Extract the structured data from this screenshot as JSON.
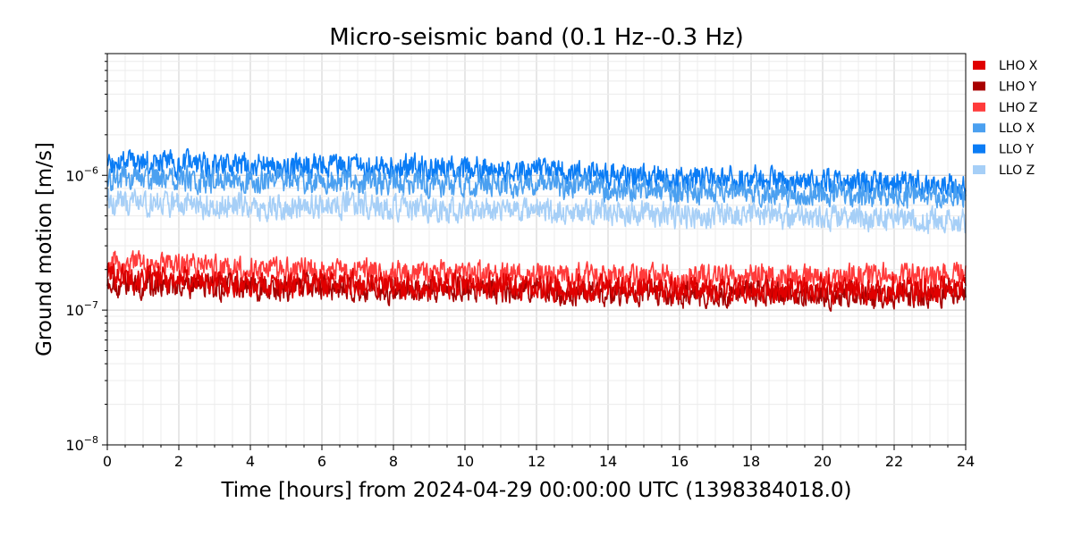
{
  "chart_data": {
    "type": "line",
    "title": "Micro-seismic band (0.1 Hz--0.3 Hz)",
    "xlabel": "Time [hours] from 2024-04-29 00:00:00 UTC (1398384018.0)",
    "ylabel": "Ground motion [m/s]",
    "xlim": [
      0,
      24
    ],
    "ylim": [
      1e-08,
      8e-06
    ],
    "y_scale": "log",
    "grid": true,
    "legend_position": "outside-right-top",
    "x_ticks": [
      {
        "value": 0,
        "label": "0"
      },
      {
        "value": 2,
        "label": "2"
      },
      {
        "value": 4,
        "label": "4"
      },
      {
        "value": 6,
        "label": "6"
      },
      {
        "value": 8,
        "label": "8"
      },
      {
        "value": 10,
        "label": "10"
      },
      {
        "value": 12,
        "label": "12"
      },
      {
        "value": 14,
        "label": "14"
      },
      {
        "value": 16,
        "label": "16"
      },
      {
        "value": 18,
        "label": "18"
      },
      {
        "value": 20,
        "label": "20"
      },
      {
        "value": 22,
        "label": "22"
      },
      {
        "value": 24,
        "label": "24"
      }
    ],
    "y_ticks": [
      {
        "value": 1e-08,
        "base": "10",
        "exp": "−8"
      },
      {
        "value": 1e-07,
        "base": "10",
        "exp": "−7"
      },
      {
        "value": 1e-06,
        "base": "10",
        "exp": "−6"
      }
    ],
    "x": [
      0,
      1,
      2,
      3,
      4,
      5,
      6,
      7,
      8,
      9,
      10,
      11,
      12,
      13,
      14,
      15,
      16,
      17,
      18,
      19,
      20,
      21,
      22,
      23,
      24
    ],
    "series": [
      {
        "name": "LHO X",
        "color": "#e00000",
        "values": [
          1.9e-07,
          1.7e-07,
          1.7e-07,
          1.6e-07,
          1.55e-07,
          1.55e-07,
          1.6e-07,
          1.6e-07,
          1.5e-07,
          1.5e-07,
          1.55e-07,
          1.5e-07,
          1.45e-07,
          1.45e-07,
          1.45e-07,
          1.45e-07,
          1.4e-07,
          1.4e-07,
          1.45e-07,
          1.4e-07,
          1.45e-07,
          1.4e-07,
          1.45e-07,
          1.4e-07,
          1.5e-07
        ]
      },
      {
        "name": "LHO Y",
        "color": "#a80000",
        "values": [
          1.6e-07,
          1.5e-07,
          1.55e-07,
          1.5e-07,
          1.45e-07,
          1.45e-07,
          1.5e-07,
          1.45e-07,
          1.4e-07,
          1.4e-07,
          1.45e-07,
          1.4e-07,
          1.35e-07,
          1.35e-07,
          1.35e-07,
          1.35e-07,
          1.3e-07,
          1.3e-07,
          1.35e-07,
          1.3e-07,
          1.3e-07,
          1.3e-07,
          1.3e-07,
          1.3e-07,
          1.4e-07
        ]
      },
      {
        "name": "LHO Z",
        "color": "#ff3b3b",
        "values": [
          2.2e-07,
          2.15e-07,
          2.1e-07,
          2.05e-07,
          2e-07,
          1.95e-07,
          1.95e-07,
          1.95e-07,
          1.9e-07,
          1.9e-07,
          1.9e-07,
          1.85e-07,
          1.8e-07,
          1.8e-07,
          1.8e-07,
          1.75e-07,
          1.75e-07,
          1.75e-07,
          1.8e-07,
          1.75e-07,
          1.75e-07,
          1.75e-07,
          1.8e-07,
          1.75e-07,
          1.85e-07
        ]
      },
      {
        "name": "LLO X",
        "color": "#4ba0f0",
        "values": [
          9e-07,
          9.5e-07,
          9.5e-07,
          9e-07,
          9e-07,
          9e-07,
          9e-07,
          9e-07,
          9e-07,
          8.5e-07,
          8.5e-07,
          8.5e-07,
          8.5e-07,
          8.2e-07,
          8e-07,
          7.8e-07,
          7.5e-07,
          7.5e-07,
          7.5e-07,
          7.3e-07,
          7.3e-07,
          7.2e-07,
          7e-07,
          7e-07,
          7e-07
        ]
      },
      {
        "name": "LLO Y",
        "color": "#0a7cf5",
        "values": [
          1.15e-06,
          1.25e-06,
          1.2e-06,
          1.2e-06,
          1.2e-06,
          1.15e-06,
          1.2e-06,
          1.2e-06,
          1.15e-06,
          1.15e-06,
          1.15e-06,
          1.1e-06,
          1.1e-06,
          1.05e-06,
          1e-06,
          1e-06,
          9.5e-07,
          9.5e-07,
          9.5e-07,
          9.2e-07,
          9e-07,
          9e-07,
          8.8e-07,
          8.5e-07,
          8.5e-07
        ]
      },
      {
        "name": "LLO Z",
        "color": "#a6cff7",
        "values": [
          6.2e-07,
          6.2e-07,
          6e-07,
          6e-07,
          5.8e-07,
          5.8e-07,
          6e-07,
          6e-07,
          5.8e-07,
          5.6e-07,
          5.6e-07,
          5.6e-07,
          5.6e-07,
          5.4e-07,
          5.2e-07,
          5.2e-07,
          5e-07,
          5e-07,
          5e-07,
          5e-07,
          4.9e-07,
          4.9e-07,
          4.8e-07,
          4.6e-07,
          4.6e-07
        ]
      }
    ]
  }
}
